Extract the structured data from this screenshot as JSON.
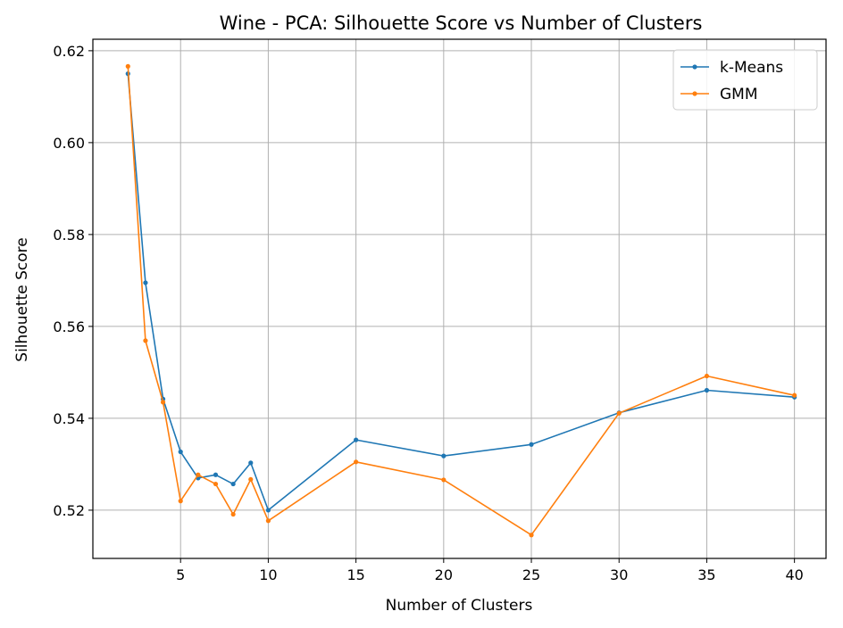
{
  "chart_data": {
    "type": "line",
    "title": "Wine - PCA: Silhouette Score vs Number of Clusters",
    "xlabel": "Number of Clusters",
    "ylabel": "Silhouette Score",
    "xlim": [
      0,
      41.8
    ],
    "ylim": [
      0.5095,
      0.6225
    ],
    "xticks": [
      5,
      10,
      15,
      20,
      25,
      30,
      35,
      40
    ],
    "yticks": [
      0.52,
      0.54,
      0.56,
      0.58,
      0.6,
      0.62
    ],
    "xtick_labels": [
      "5",
      "10",
      "15",
      "20",
      "25",
      "30",
      "35",
      "40"
    ],
    "ytick_labels": [
      "0.52",
      "0.54",
      "0.56",
      "0.58",
      "0.60",
      "0.62"
    ],
    "grid": true,
    "legend_position": "top-right",
    "x": [
      2,
      3,
      4,
      5,
      6,
      7,
      8,
      9,
      10,
      15,
      20,
      25,
      30,
      35,
      40
    ],
    "series": [
      {
        "name": "k-Means",
        "color": "#1f77b4",
        "values": [
          0.615,
          0.5695,
          0.5442,
          0.5327,
          0.527,
          0.5277,
          0.5257,
          0.5303,
          0.52,
          0.5353,
          0.5318,
          0.5343,
          0.5412,
          0.5461,
          0.5446
        ]
      },
      {
        "name": "GMM",
        "color": "#ff7f0e",
        "values": [
          0.6166,
          0.5569,
          0.5435,
          0.522,
          0.5277,
          0.5257,
          0.5191,
          0.5267,
          0.5177,
          0.5305,
          0.5266,
          0.5146,
          0.5411,
          0.5492,
          0.545
        ]
      }
    ]
  }
}
